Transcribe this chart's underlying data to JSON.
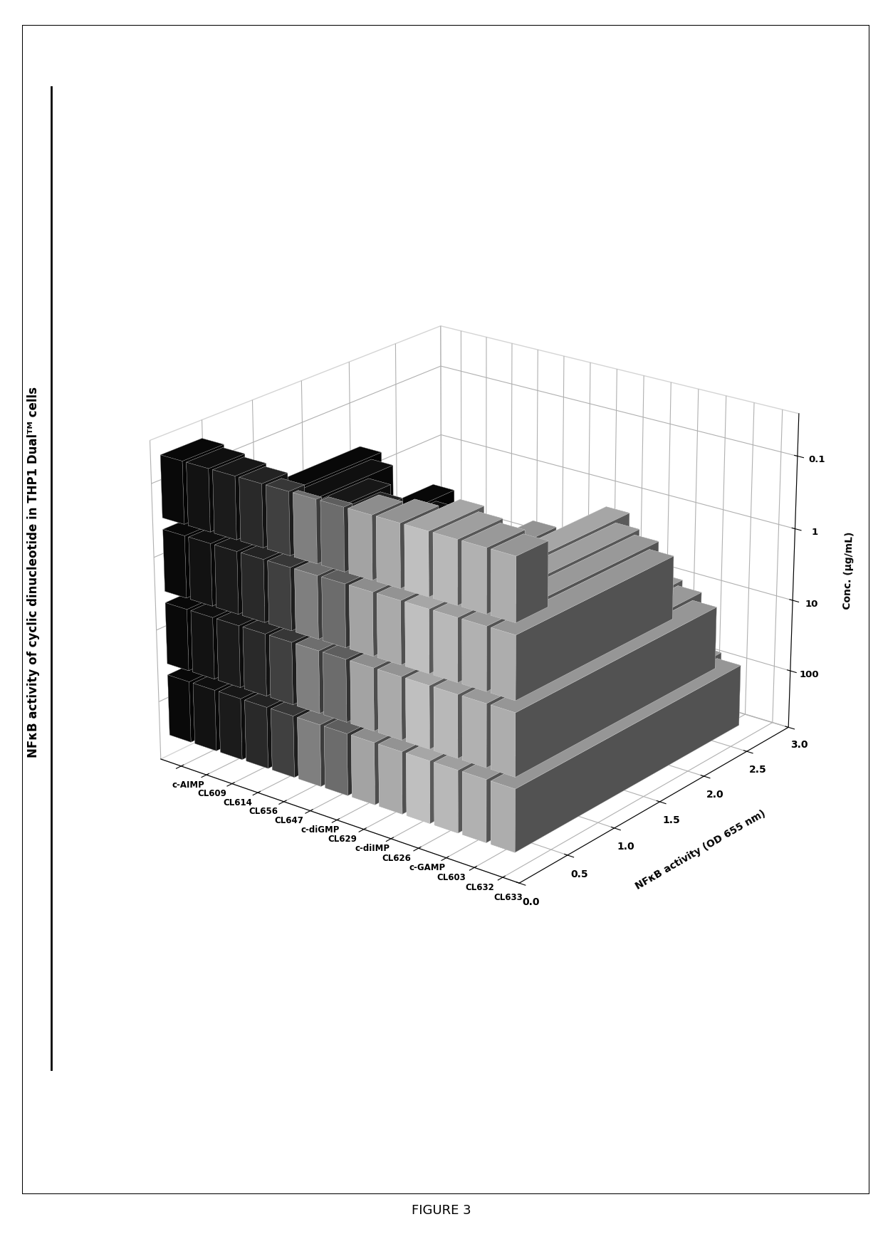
{
  "title": "NFκB activity of cyclic dinucleotide in THP1 Dualᵀᴹ cells",
  "ylabel_bottom": "NFκB activity (OD 655 nm)",
  "xlabel_bottom": "Conc. (μg/mL)",
  "figure_label": "FIGURE 3",
  "compounds": [
    "c-AIMP",
    "CL609",
    "CL614",
    "CL656",
    "CL647",
    "c-diGMP",
    "CL629",
    "c-diIMP",
    "CL626",
    "c-GAMP",
    "CL603",
    "CL632",
    "CL633"
  ],
  "concentrations": [
    "100",
    "10",
    "1",
    "0.1"
  ],
  "data": [
    [
      3.0,
      2.8,
      2.0,
      0.4
    ],
    [
      2.85,
      2.55,
      1.85,
      0.35
    ],
    [
      2.7,
      2.3,
      1.55,
      0.3
    ],
    [
      2.5,
      2.1,
      1.4,
      0.25
    ],
    [
      1.6,
      1.35,
      0.9,
      0.15
    ],
    [
      0.8,
      0.65,
      0.35,
      0.05
    ],
    [
      1.1,
      0.85,
      0.55,
      0.08
    ],
    [
      2.0,
      1.75,
      1.35,
      0.3
    ],
    [
      2.2,
      1.95,
      1.6,
      0.38
    ],
    [
      2.8,
      2.55,
      2.1,
      0.55
    ],
    [
      2.65,
      2.4,
      1.9,
      0.45
    ],
    [
      2.55,
      2.3,
      1.8,
      0.38
    ],
    [
      2.45,
      2.15,
      1.65,
      0.32
    ]
  ],
  "bar_colors": [
    "#0a0a0a",
    "#141414",
    "#1e1e1e",
    "#2e2e2e",
    "#484848",
    "#909090",
    "#7a7a7a",
    "#b8b8b8",
    "#c0c0c0",
    "#d8d8d8",
    "#d0d0d0",
    "#c8c8c8",
    "#c4c4c4"
  ],
  "yticks": [
    0.0,
    0.5,
    1.0,
    1.5,
    2.0,
    2.5,
    3.0
  ],
  "background_color": "#ffffff",
  "elev": 22,
  "azim": -52
}
